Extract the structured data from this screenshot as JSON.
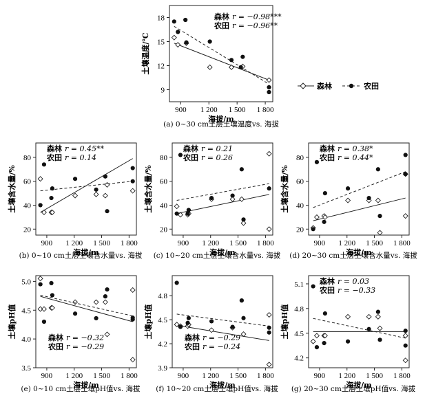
{
  "legend": {
    "forest_label": "森林",
    "farm_label": "农田"
  },
  "chart_data": [
    {
      "id": "a",
      "type": "scatter",
      "caption": "(a) 0~30 cm土层土壤温度vs. 海拔",
      "xlabel": "海拔/m",
      "ylabel": "土壤温度/℃",
      "xlim": [
        780,
        1880
      ],
      "ylim": [
        7.5,
        19.5
      ],
      "xticks": [
        900,
        1200,
        1500,
        1800
      ],
      "xtick_labels": [
        "900",
        "1 200",
        "1 500",
        "1 800"
      ],
      "yticks": [
        9,
        12,
        15,
        18
      ],
      "ytick_labels": [
        "9",
        "12",
        "15",
        "18"
      ],
      "stats": [
        {
          "name": "森林",
          "text": "r = −0.98***"
        },
        {
          "name": "农田",
          "text": "r = −0.96**"
        }
      ],
      "stats_pos": "top-right",
      "series": [
        {
          "name": "森林",
          "marker": "diamond",
          "line": "solid",
          "x": [
            830,
            870,
            960,
            1210,
            1440,
            1560,
            1840
          ],
          "y": [
            15.5,
            14.6,
            14.8,
            11.8,
            11.8,
            11.9,
            10.2
          ],
          "fit": [
            [
              830,
              14.8
            ],
            [
              1840,
              10.2
            ]
          ]
        },
        {
          "name": "农田",
          "marker": "circle",
          "line": "dashed",
          "x": [
            830,
            870,
            950,
            960,
            1210,
            1440,
            1540,
            1560,
            1840,
            1840
          ],
          "y": [
            17.5,
            16.2,
            17.7,
            14.9,
            15.0,
            12.7,
            11.8,
            13.1,
            9.3,
            8.7
          ],
          "fit": [
            [
              830,
              16.9
            ],
            [
              1840,
              9.7
            ]
          ]
        }
      ]
    },
    {
      "id": "b",
      "type": "scatter",
      "caption": "(b) 0~10 cm土层土壤含水量vs. 海拔",
      "xlabel": "海拔/m",
      "ylabel": "土壤含水量/%",
      "xlim": [
        780,
        1880
      ],
      "ylim": [
        15,
        92
      ],
      "xticks": [
        900,
        1200,
        1500,
        1800
      ],
      "xtick_labels": [
        "900",
        "1 200",
        "1 500",
        "1 800"
      ],
      "yticks": [
        20,
        40,
        60,
        80
      ],
      "ytick_labels": [
        "20",
        "40",
        "60",
        "80"
      ],
      "stats": [
        {
          "name": "森林",
          "text": "r = 0.45**"
        },
        {
          "name": "农田",
          "text": "r = 0.14"
        }
      ],
      "stats_pos": "top-left",
      "series": [
        {
          "name": "森林",
          "marker": "diamond",
          "line": "solid",
          "x": [
            830,
            870,
            950,
            960,
            1210,
            1440,
            1540,
            1560,
            1840
          ],
          "y": [
            62,
            34,
            34,
            34,
            48,
            49,
            48,
            57,
            52
          ],
          "fit": [
            [
              830,
              34
            ],
            [
              1840,
              79
            ]
          ]
        },
        {
          "name": "农田",
          "marker": "circle",
          "line": "dashed",
          "x": [
            830,
            870,
            950,
            960,
            1210,
            1440,
            1540,
            1560,
            1840,
            1840
          ],
          "y": [
            40,
            74,
            46,
            54,
            62,
            53,
            64,
            35,
            71,
            60
          ],
          "fit": [
            [
              830,
              52
            ],
            [
              1840,
              60
            ]
          ]
        }
      ]
    },
    {
      "id": "c",
      "type": "scatter",
      "caption": "(c) 10~20 cm土层土壤含水量vs. 海拔",
      "xlabel": "海拔/m",
      "ylabel": "土壤含水量/%",
      "xlim": [
        780,
        1880
      ],
      "ylim": [
        15,
        92
      ],
      "xticks": [
        900,
        1200,
        1500,
        1800
      ],
      "xtick_labels": [
        "900",
        "1 200",
        "1 500",
        "1 800"
      ],
      "yticks": [
        20,
        40,
        60,
        80
      ],
      "ytick_labels": [
        "20",
        "40",
        "60",
        "80"
      ],
      "stats": [
        {
          "name": "森林",
          "text": "r = 0.21"
        },
        {
          "name": "农田",
          "text": "r = 0.26"
        }
      ],
      "stats_pos": "top-left",
      "series": [
        {
          "name": "森林",
          "marker": "diamond",
          "line": "solid",
          "x": [
            830,
            870,
            950,
            960,
            1210,
            1440,
            1540,
            1560,
            1840,
            1840
          ],
          "y": [
            39,
            32,
            32,
            33,
            45,
            45,
            45,
            25,
            83,
            20
          ],
          "fit": [
            [
              830,
              33
            ],
            [
              1840,
              49
            ]
          ]
        },
        {
          "name": "农田",
          "marker": "circle",
          "line": "dashed",
          "x": [
            830,
            870,
            950,
            960,
            1210,
            1440,
            1540,
            1560,
            1840
          ],
          "y": [
            33,
            82,
            33,
            36,
            46,
            48,
            70,
            28,
            54
          ],
          "fit": [
            [
              830,
              44
            ],
            [
              1840,
              58
            ]
          ]
        }
      ]
    },
    {
      "id": "d",
      "type": "scatter",
      "caption": "(d) 20~30 cm土层土壤含水量vs. 海拔",
      "xlabel": "海拔/m",
      "ylabel": "土壤含水量/%",
      "xlim": [
        780,
        1880
      ],
      "ylim": [
        15,
        92
      ],
      "xticks": [
        900,
        1200,
        1500,
        1800
      ],
      "xtick_labels": [
        "900",
        "1 200",
        "1 500",
        "1 800"
      ],
      "yticks": [
        20,
        40,
        60,
        80
      ],
      "ytick_labels": [
        "20",
        "40",
        "60",
        "80"
      ],
      "stats": [
        {
          "name": "森林",
          "text": "r = 0.38*"
        },
        {
          "name": "农田",
          "text": "r = 0.44*"
        }
      ],
      "stats_pos": "top-left",
      "series": [
        {
          "name": "森林",
          "marker": "diamond",
          "line": "solid",
          "x": [
            830,
            870,
            950,
            960,
            1210,
            1440,
            1540,
            1560,
            1840,
            1840
          ],
          "y": [
            21,
            30,
            31,
            30,
            44,
            44,
            44,
            17,
            66,
            31
          ],
          "fit": [
            [
              830,
              27
            ],
            [
              1840,
              46
            ]
          ]
        },
        {
          "name": "农田",
          "marker": "circle",
          "line": "dashed",
          "x": [
            830,
            870,
            950,
            960,
            1210,
            1440,
            1540,
            1560,
            1840,
            1840
          ],
          "y": [
            20,
            76,
            26,
            50,
            54,
            46,
            70,
            31,
            82,
            66
          ],
          "fit": [
            [
              830,
              38
            ],
            [
              1840,
              68
            ]
          ]
        }
      ]
    },
    {
      "id": "e",
      "type": "scatter",
      "caption": "(e) 0~10 cm土层土壤pH值vs. 海拔",
      "xlabel": "海拔/m",
      "ylabel": "土壤pH值",
      "xlim": [
        780,
        1880
      ],
      "ylim": [
        3.5,
        5.1
      ],
      "xticks": [
        900,
        1200,
        1500,
        1800
      ],
      "xtick_labels": [
        "900",
        "1 200",
        "1 500",
        "1 800"
      ],
      "yticks": [
        3.5,
        4.0,
        4.5,
        5.0
      ],
      "ytick_labels": [
        "3.5",
        "4.0",
        "4.5",
        "5.0"
      ],
      "stats": [
        {
          "name": "森林",
          "text": "r = −0.32"
        },
        {
          "name": "农田",
          "text": "r = −0.29"
        }
      ],
      "stats_pos": "bottom-left",
      "series": [
        {
          "name": "森林",
          "marker": "diamond",
          "line": "solid",
          "x": [
            830,
            830,
            870,
            950,
            960,
            1210,
            1440,
            1540,
            1560,
            1840,
            1840
          ],
          "y": [
            5.05,
            4.52,
            4.52,
            4.54,
            4.54,
            4.64,
            4.64,
            4.64,
            4.08,
            4.85,
            3.64
          ],
          "fit": [
            [
              830,
              4.74
            ],
            [
              1840,
              4.3
            ]
          ]
        },
        {
          "name": "农田",
          "marker": "circle",
          "line": "dashed",
          "x": [
            830,
            870,
            950,
            960,
            1210,
            1440,
            1540,
            1560,
            1840,
            1840
          ],
          "y": [
            4.95,
            4.3,
            4.97,
            4.76,
            4.44,
            4.36,
            4.74,
            4.86,
            4.34,
            4.37
          ],
          "fit": [
            [
              830,
              4.76
            ],
            [
              1840,
              4.4
            ]
          ]
        }
      ]
    },
    {
      "id": "f",
      "type": "scatter",
      "caption": "(f) 10~20 cm土层土壤pH值vs. 海拔",
      "xlabel": "海拔/m",
      "ylabel": "土壤pH值",
      "xlim": [
        780,
        1880
      ],
      "ylim": [
        3.9,
        5.05
      ],
      "xticks": [
        900,
        1200,
        1500,
        1800
      ],
      "xtick_labels": [
        "900",
        "1 200",
        "1 500",
        "1 800"
      ],
      "yticks": [
        3.9,
        4.2,
        4.5,
        4.8
      ],
      "ytick_labels": [
        "3.9",
        "4.2",
        "4.5",
        "4.8"
      ],
      "stats": [
        {
          "name": "森林",
          "text": "r = −0.29"
        },
        {
          "name": "农田",
          "text": "r = −0.24"
        }
      ],
      "stats_pos": "bottom-left",
      "series": [
        {
          "name": "森林",
          "marker": "diamond",
          "line": "solid",
          "x": [
            830,
            870,
            950,
            960,
            1210,
            1440,
            1560,
            1840,
            1840
          ],
          "y": [
            4.44,
            4.42,
            4.42,
            4.44,
            4.37,
            4.4,
            4.32,
            4.56,
            3.94
          ],
          "fit": [
            [
              830,
              4.43
            ],
            [
              1840,
              4.24
            ]
          ]
        },
        {
          "name": "农田",
          "marker": "circle",
          "line": "dashed",
          "x": [
            830,
            870,
            950,
            960,
            1210,
            1440,
            1540,
            1560,
            1840,
            1840
          ],
          "y": [
            4.96,
            4.41,
            4.46,
            4.52,
            4.48,
            4.41,
            4.74,
            4.52,
            4.4,
            4.34
          ],
          "fit": [
            [
              830,
              4.57
            ],
            [
              1840,
              4.42
            ]
          ]
        }
      ]
    },
    {
      "id": "g",
      "type": "scatter",
      "caption": "(g) 20~30 cm土层土壤pH值vs. 海拔",
      "xlabel": "海拔/m",
      "ylabel": "土壤pH值",
      "xlim": [
        780,
        1880
      ],
      "ylim": [
        4.08,
        5.2
      ],
      "xticks": [
        900,
        1200,
        1500,
        1800
      ],
      "xtick_labels": [
        "900",
        "1 200",
        "1 500",
        "1 800"
      ],
      "yticks": [
        4.2,
        4.5,
        4.8,
        5.1
      ],
      "ytick_labels": [
        "4.2",
        "4.5",
        "4.8",
        "5.1"
      ],
      "stats": [
        {
          "name": "森林",
          "text": "r = 0.03"
        },
        {
          "name": "农田",
          "text": "r = −0.33"
        }
      ],
      "stats_pos": "top-left",
      "series": [
        {
          "name": "森林",
          "marker": "diamond",
          "line": "solid",
          "x": [
            830,
            870,
            950,
            960,
            1210,
            1440,
            1540,
            1560,
            1840,
            1840
          ],
          "y": [
            4.4,
            4.47,
            4.47,
            4.47,
            4.7,
            4.7,
            4.7,
            4.56,
            4.47,
            4.17
          ],
          "fit": [
            [
              830,
              4.52
            ],
            [
              1840,
              4.52
            ]
          ]
        },
        {
          "name": "农田",
          "marker": "circle",
          "line": "dashed",
          "x": [
            830,
            870,
            950,
            960,
            1210,
            1440,
            1540,
            1560,
            1840,
            1840
          ],
          "y": [
            5.07,
            4.33,
            4.38,
            4.74,
            4.4,
            4.55,
            4.76,
            4.42,
            4.53,
            4.35
          ],
          "fit": [
            [
              830,
              4.68
            ],
            [
              1840,
              4.44
            ]
          ]
        }
      ]
    }
  ]
}
